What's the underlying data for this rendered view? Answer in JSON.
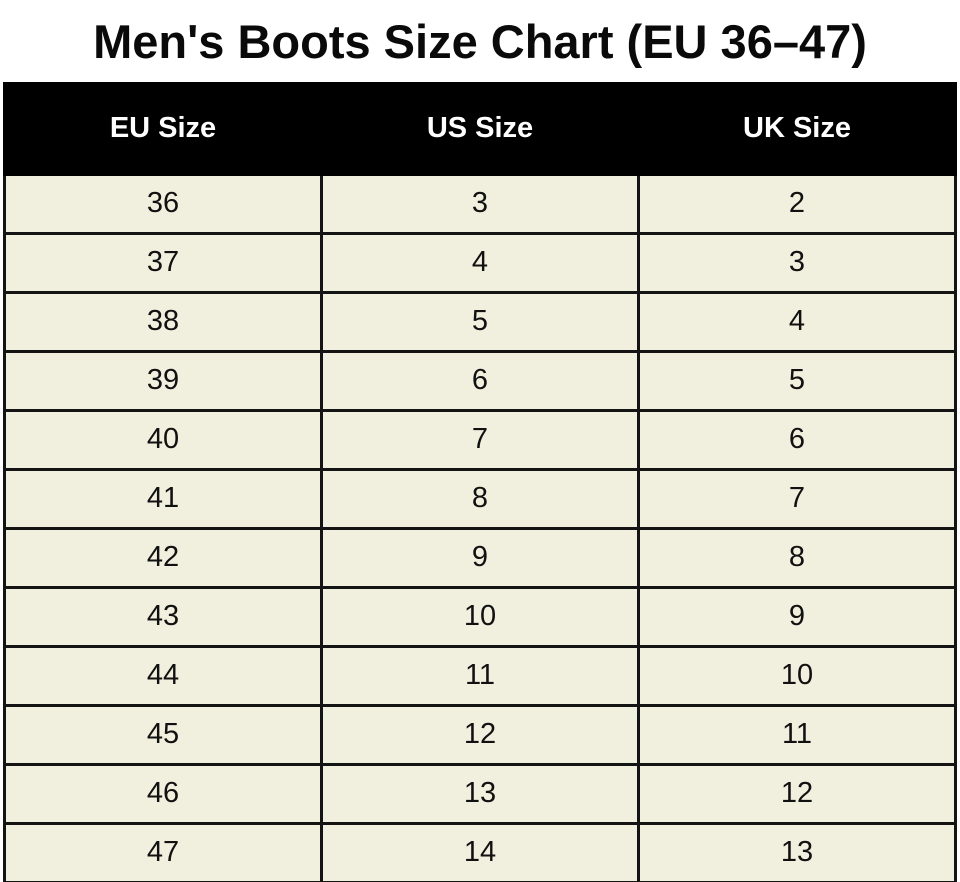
{
  "title": "Men's Boots Size Chart (EU 36–47)",
  "colors": {
    "header_bg": "#000000",
    "header_text": "#ffffff",
    "row_bg": "#f1efdd",
    "border": "#141414",
    "title_text": "#0a0a0a",
    "page_bg": "#ffffff"
  },
  "chart_data": {
    "type": "table",
    "title": "Men's Boots Size Chart (EU 36–47)",
    "columns": [
      "EU Size",
      "US Size",
      "UK Size"
    ],
    "rows": [
      [
        "36",
        "3",
        "2"
      ],
      [
        "37",
        "4",
        "3"
      ],
      [
        "38",
        "5",
        "4"
      ],
      [
        "39",
        "6",
        "5"
      ],
      [
        "40",
        "7",
        "6"
      ],
      [
        "41",
        "8",
        "7"
      ],
      [
        "42",
        "9",
        "8"
      ],
      [
        "43",
        "10",
        "9"
      ],
      [
        "44",
        "11",
        "10"
      ],
      [
        "45",
        "12",
        "11"
      ],
      [
        "46",
        "13",
        "12"
      ],
      [
        "47",
        "14",
        "13"
      ]
    ]
  }
}
